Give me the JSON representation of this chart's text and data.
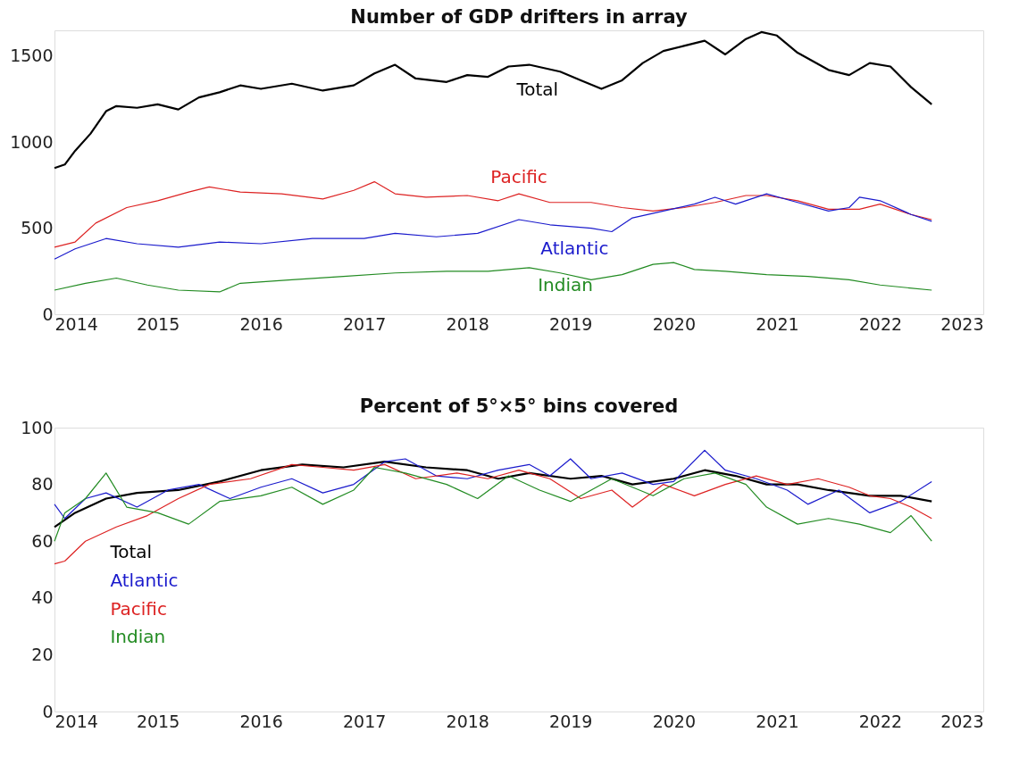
{
  "chart_data": [
    {
      "type": "line",
      "title": "Number of GDP drifters in array",
      "xlim": [
        2014,
        2023
      ],
      "xticks": [
        2014,
        2015,
        2016,
        2017,
        2018,
        2019,
        2020,
        2021,
        2022,
        2023
      ],
      "ylim": [
        0,
        1650
      ],
      "yticks": [
        0,
        500,
        1000,
        1500
      ],
      "grid": false,
      "legend": false,
      "series": [
        {
          "name": "Total",
          "color": "#000000",
          "x": [
            2014.0,
            2014.1,
            2014.2,
            2014.35,
            2014.5,
            2014.6,
            2014.8,
            2015.0,
            2015.2,
            2015.4,
            2015.6,
            2015.8,
            2016.0,
            2016.3,
            2016.6,
            2016.9,
            2017.1,
            2017.3,
            2017.5,
            2017.8,
            2018.0,
            2018.2,
            2018.4,
            2018.6,
            2018.9,
            2019.1,
            2019.3,
            2019.5,
            2019.7,
            2019.9,
            2020.1,
            2020.3,
            2020.5,
            2020.7,
            2020.85,
            2021.0,
            2021.2,
            2021.5,
            2021.7,
            2021.9,
            2022.1,
            2022.3,
            2022.5
          ],
          "values": [
            850,
            870,
            950,
            1050,
            1180,
            1210,
            1200,
            1220,
            1190,
            1260,
            1290,
            1330,
            1310,
            1340,
            1300,
            1330,
            1400,
            1450,
            1370,
            1350,
            1390,
            1380,
            1440,
            1450,
            1410,
            1360,
            1310,
            1360,
            1460,
            1530,
            1560,
            1590,
            1510,
            1600,
            1640,
            1620,
            1520,
            1420,
            1390,
            1460,
            1440,
            1320,
            1220
          ]
        },
        {
          "name": "Pacific",
          "color": "#dd2222",
          "x": [
            2014.0,
            2014.2,
            2014.4,
            2014.7,
            2015.0,
            2015.3,
            2015.5,
            2015.8,
            2016.2,
            2016.6,
            2016.9,
            2017.1,
            2017.3,
            2017.6,
            2018.0,
            2018.3,
            2018.5,
            2018.8,
            2019.2,
            2019.5,
            2019.8,
            2020.1,
            2020.4,
            2020.7,
            2020.9,
            2021.2,
            2021.5,
            2021.8,
            2022.0,
            2022.3,
            2022.5
          ],
          "values": [
            390,
            420,
            530,
            620,
            660,
            710,
            740,
            710,
            700,
            670,
            720,
            770,
            700,
            680,
            690,
            660,
            700,
            650,
            650,
            620,
            600,
            620,
            650,
            690,
            690,
            660,
            610,
            610,
            640,
            580,
            550
          ]
        },
        {
          "name": "Atlantic",
          "color": "#1a1acc",
          "x": [
            2014.0,
            2014.2,
            2014.5,
            2014.8,
            2015.2,
            2015.6,
            2016.0,
            2016.5,
            2017.0,
            2017.3,
            2017.7,
            2018.1,
            2018.5,
            2018.8,
            2019.2,
            2019.4,
            2019.6,
            2019.9,
            2020.2,
            2020.4,
            2020.6,
            2020.9,
            2021.2,
            2021.5,
            2021.7,
            2021.8,
            2022.0,
            2022.3,
            2022.5
          ],
          "values": [
            320,
            380,
            440,
            410,
            390,
            420,
            410,
            440,
            440,
            470,
            450,
            470,
            550,
            520,
            500,
            480,
            560,
            600,
            640,
            680,
            640,
            700,
            650,
            600,
            620,
            680,
            660,
            580,
            540
          ]
        },
        {
          "name": "Indian",
          "color": "#228b22",
          "x": [
            2014.0,
            2014.3,
            2014.6,
            2014.9,
            2015.2,
            2015.6,
            2015.8,
            2016.3,
            2016.8,
            2017.3,
            2017.8,
            2018.2,
            2018.6,
            2018.9,
            2019.2,
            2019.5,
            2019.8,
            2020.0,
            2020.2,
            2020.5,
            2020.9,
            2021.3,
            2021.7,
            2022.0,
            2022.5
          ],
          "values": [
            140,
            180,
            210,
            170,
            140,
            130,
            180,
            200,
            220,
            240,
            250,
            250,
            270,
            240,
            200,
            230,
            290,
            300,
            260,
            250,
            230,
            220,
            200,
            170,
            140
          ]
        }
      ]
    },
    {
      "type": "line",
      "title": "Percent of 5°×5° bins covered",
      "xlim": [
        2014,
        2023
      ],
      "xticks": [
        2014,
        2015,
        2016,
        2017,
        2018,
        2019,
        2020,
        2021,
        2022,
        2023
      ],
      "ylim": [
        0,
        100
      ],
      "yticks": [
        0,
        20,
        40,
        60,
        80,
        100
      ],
      "grid": false,
      "legend": "left",
      "series": [
        {
          "name": "Total",
          "color": "#000000",
          "x": [
            2014.0,
            2014.2,
            2014.5,
            2014.8,
            2015.2,
            2015.6,
            2016.0,
            2016.4,
            2016.8,
            2017.2,
            2017.6,
            2018.0,
            2018.3,
            2018.6,
            2019.0,
            2019.3,
            2019.6,
            2020.0,
            2020.3,
            2020.6,
            2020.9,
            2021.2,
            2021.5,
            2021.9,
            2022.2,
            2022.5
          ],
          "values": [
            65,
            70,
            75,
            77,
            78,
            81,
            85,
            87,
            86,
            88,
            86,
            85,
            82,
            84,
            82,
            83,
            80,
            82,
            85,
            83,
            80,
            80,
            78,
            76,
            76,
            74
          ]
        },
        {
          "name": "Atlantic",
          "color": "#1a1acc",
          "x": [
            2014.0,
            2014.1,
            2014.3,
            2014.5,
            2014.8,
            2015.1,
            2015.4,
            2015.7,
            2016.0,
            2016.3,
            2016.6,
            2016.9,
            2017.2,
            2017.4,
            2017.7,
            2018.0,
            2018.3,
            2018.6,
            2018.8,
            2019.0,
            2019.2,
            2019.5,
            2019.8,
            2020.0,
            2020.3,
            2020.5,
            2020.8,
            2021.1,
            2021.3,
            2021.6,
            2021.9,
            2022.2,
            2022.5
          ],
          "values": [
            73,
            68,
            75,
            77,
            72,
            78,
            80,
            75,
            79,
            82,
            77,
            80,
            88,
            89,
            83,
            82,
            85,
            87,
            83,
            89,
            82,
            84,
            80,
            81,
            92,
            85,
            82,
            78,
            73,
            78,
            70,
            74,
            81
          ]
        },
        {
          "name": "Pacific",
          "color": "#dd2222",
          "x": [
            2014.0,
            2014.1,
            2014.3,
            2014.6,
            2014.9,
            2015.2,
            2015.5,
            2015.9,
            2016.3,
            2016.6,
            2016.9,
            2017.2,
            2017.5,
            2017.9,
            2018.2,
            2018.5,
            2018.8,
            2019.1,
            2019.4,
            2019.6,
            2019.9,
            2020.2,
            2020.5,
            2020.8,
            2021.1,
            2021.4,
            2021.7,
            2021.9,
            2022.1,
            2022.3,
            2022.5
          ],
          "values": [
            52,
            53,
            60,
            65,
            69,
            75,
            80,
            82,
            87,
            86,
            85,
            87,
            82,
            84,
            82,
            85,
            82,
            75,
            78,
            72,
            80,
            76,
            80,
            83,
            80,
            82,
            79,
            76,
            75,
            72,
            68
          ]
        },
        {
          "name": "Indian",
          "color": "#228b22",
          "x": [
            2014.0,
            2014.1,
            2014.3,
            2014.5,
            2014.7,
            2015.0,
            2015.3,
            2015.6,
            2016.0,
            2016.3,
            2016.6,
            2016.9,
            2017.1,
            2017.4,
            2017.8,
            2018.1,
            2018.4,
            2018.7,
            2019.0,
            2019.4,
            2019.8,
            2020.1,
            2020.4,
            2020.7,
            2020.9,
            2021.2,
            2021.5,
            2021.8,
            2022.1,
            2022.3,
            2022.5
          ],
          "values": [
            60,
            70,
            75,
            84,
            72,
            70,
            66,
            74,
            76,
            79,
            73,
            78,
            86,
            84,
            80,
            75,
            83,
            78,
            74,
            82,
            76,
            82,
            84,
            80,
            72,
            66,
            68,
            66,
            63,
            69,
            60
          ]
        }
      ]
    }
  ]
}
